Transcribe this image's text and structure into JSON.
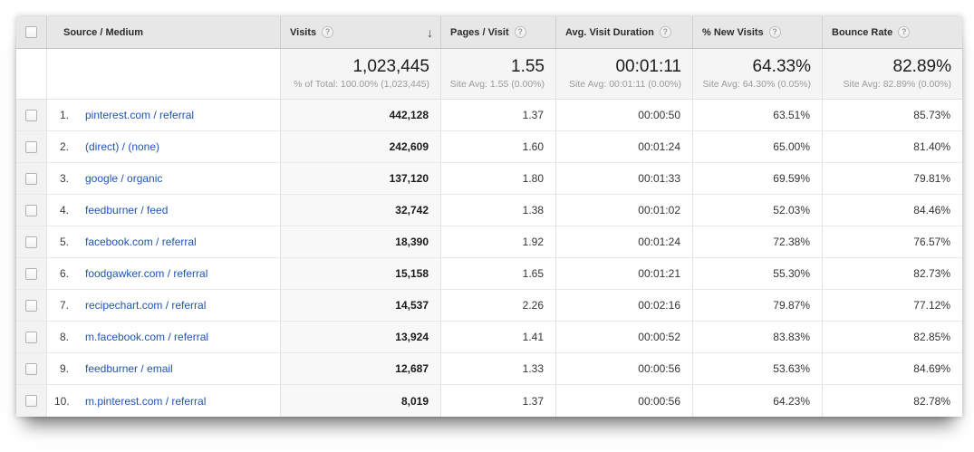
{
  "colors": {
    "link": "#1e55b4",
    "header_bg": "#e7e7e7",
    "summary_metric_bg": "#f5f5f5",
    "sorted_column_bg": "#f8f8f8",
    "checkbox_column_bg": "#f2f2f2"
  },
  "icons": {
    "help_glyph": "?",
    "sort_descending_glyph": "↓"
  },
  "table": {
    "header": {
      "source_label": "Source / Medium",
      "visits_label": "Visits",
      "pages_label": "Pages / Visit",
      "duration_label": "Avg. Visit Duration",
      "new_visits_label": "% New Visits",
      "bounce_label": "Bounce Rate"
    },
    "summary": {
      "visits": "1,023,445",
      "visits_sub": "% of Total: 100.00% (1,023,445)",
      "pages": "1.55",
      "pages_sub": "Site Avg: 1.55 (0.00%)",
      "duration": "00:01:11",
      "duration_sub": "Site Avg: 00:01:11 (0.00%)",
      "new_visits": "64.33%",
      "new_visits_sub": "Site Avg: 64.30% (0.05%)",
      "bounce": "82.89%",
      "bounce_sub": "Site Avg: 82.89% (0.00%)"
    },
    "rows": [
      {
        "rank": "1.",
        "source": "pinterest.com / referral",
        "visits": "442,128",
        "pages": "1.37",
        "duration": "00:00:50",
        "new_visits": "63.51%",
        "bounce": "85.73%"
      },
      {
        "rank": "2.",
        "source": "(direct) / (none)",
        "visits": "242,609",
        "pages": "1.60",
        "duration": "00:01:24",
        "new_visits": "65.00%",
        "bounce": "81.40%"
      },
      {
        "rank": "3.",
        "source": "google / organic",
        "visits": "137,120",
        "pages": "1.80",
        "duration": "00:01:33",
        "new_visits": "69.59%",
        "bounce": "79.81%"
      },
      {
        "rank": "4.",
        "source": "feedburner / feed",
        "visits": "32,742",
        "pages": "1.38",
        "duration": "00:01:02",
        "new_visits": "52.03%",
        "bounce": "84.46%"
      },
      {
        "rank": "5.",
        "source": "facebook.com / referral",
        "visits": "18,390",
        "pages": "1.92",
        "duration": "00:01:24",
        "new_visits": "72.38%",
        "bounce": "76.57%"
      },
      {
        "rank": "6.",
        "source": "foodgawker.com / referral",
        "visits": "15,158",
        "pages": "1.65",
        "duration": "00:01:21",
        "new_visits": "55.30%",
        "bounce": "82.73%"
      },
      {
        "rank": "7.",
        "source": "recipechart.com / referral",
        "visits": "14,537",
        "pages": "2.26",
        "duration": "00:02:16",
        "new_visits": "79.87%",
        "bounce": "77.12%"
      },
      {
        "rank": "8.",
        "source": "m.facebook.com / referral",
        "visits": "13,924",
        "pages": "1.41",
        "duration": "00:00:52",
        "new_visits": "83.83%",
        "bounce": "82.85%"
      },
      {
        "rank": "9.",
        "source": "feedburner / email",
        "visits": "12,687",
        "pages": "1.33",
        "duration": "00:00:56",
        "new_visits": "53.63%",
        "bounce": "84.69%"
      },
      {
        "rank": "10.",
        "source": "m.pinterest.com / referral",
        "visits": "8,019",
        "pages": "1.37",
        "duration": "00:00:56",
        "new_visits": "64.23%",
        "bounce": "82.78%"
      }
    ]
  }
}
